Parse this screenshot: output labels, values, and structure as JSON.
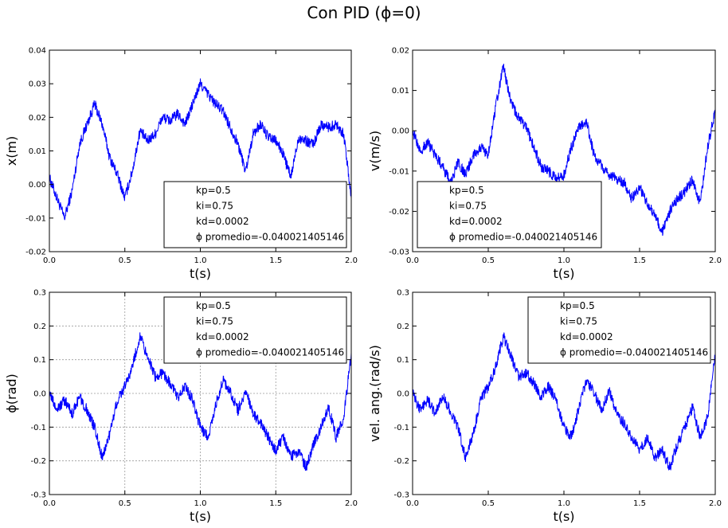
{
  "figure": {
    "suptitle": "Con PID (ϕ=0)"
  },
  "chart_data": [
    {
      "type": "line",
      "ylabel": "x(m)",
      "xlabel": "t(s)",
      "xlim": [
        0,
        2.0
      ],
      "ylim": [
        -0.02,
        0.04
      ],
      "xticks": [
        "0.0",
        "0.5",
        "1.0",
        "1.5",
        "2.0"
      ],
      "yticks": [
        "-0.02",
        "-0.01",
        "0.00",
        "0.01",
        "0.02",
        "0.03",
        "0.04"
      ],
      "grid": false,
      "legend_position": "lower-right",
      "legend": [
        "kp=0.5",
        "ki=0.75",
        "kd=0.0002",
        "ϕ promedio=-0.040021405146"
      ],
      "series": [
        {
          "color": "#0000ff",
          "x": [
            0.0,
            0.05,
            0.1,
            0.15,
            0.2,
            0.25,
            0.3,
            0.35,
            0.4,
            0.45,
            0.5,
            0.55,
            0.6,
            0.65,
            0.7,
            0.75,
            0.8,
            0.85,
            0.9,
            0.95,
            1.0,
            1.05,
            1.1,
            1.15,
            1.2,
            1.25,
            1.3,
            1.35,
            1.4,
            1.45,
            1.5,
            1.55,
            1.6,
            1.65,
            1.7,
            1.75,
            1.8,
            1.85,
            1.9,
            1.95,
            2.0
          ],
          "y": [
            0.002,
            -0.004,
            -0.01,
            -0.002,
            0.012,
            0.018,
            0.024,
            0.018,
            0.008,
            0.003,
            -0.004,
            0.004,
            0.016,
            0.013,
            0.015,
            0.02,
            0.019,
            0.021,
            0.018,
            0.024,
            0.03,
            0.027,
            0.024,
            0.022,
            0.017,
            0.012,
            0.004,
            0.015,
            0.018,
            0.014,
            0.013,
            0.009,
            0.002,
            0.014,
            0.013,
            0.012,
            0.018,
            0.017,
            0.018,
            0.015,
            -0.004
          ]
        }
      ]
    },
    {
      "type": "line",
      "ylabel": "v(m/s)",
      "xlabel": "t(s)",
      "xlim": [
        0,
        2.0
      ],
      "ylim": [
        -0.03,
        0.02
      ],
      "xticks": [
        "0.0",
        "0.5",
        "1.0",
        "1.5",
        "2.0"
      ],
      "yticks": [
        "-0.03",
        "-0.02",
        "-0.01",
        "0.00",
        "0.01",
        "0.02"
      ],
      "grid": false,
      "legend_position": "lower-left",
      "legend": [
        "kp=0.5",
        "ki=0.75",
        "kd=0.0002",
        "ϕ promedio=-0.040021405146"
      ],
      "series": [
        {
          "color": "#0000ff",
          "x": [
            0.0,
            0.05,
            0.1,
            0.15,
            0.2,
            0.25,
            0.3,
            0.35,
            0.4,
            0.45,
            0.5,
            0.55,
            0.6,
            0.65,
            0.7,
            0.75,
            0.8,
            0.85,
            0.9,
            0.95,
            1.0,
            1.05,
            1.1,
            1.15,
            1.2,
            1.25,
            1.3,
            1.35,
            1.4,
            1.45,
            1.5,
            1.55,
            1.6,
            1.65,
            1.7,
            1.75,
            1.8,
            1.85,
            1.9,
            1.95,
            2.0
          ],
          "y": [
            0.0,
            -0.005,
            -0.003,
            -0.006,
            -0.009,
            -0.013,
            -0.008,
            -0.011,
            -0.006,
            -0.004,
            -0.006,
            0.006,
            0.016,
            0.007,
            0.003,
            0.001,
            -0.004,
            -0.009,
            -0.01,
            -0.012,
            -0.011,
            -0.004,
            0.001,
            0.002,
            -0.006,
            -0.009,
            -0.011,
            -0.012,
            -0.013,
            -0.017,
            -0.014,
            -0.018,
            -0.021,
            -0.025,
            -0.02,
            -0.017,
            -0.015,
            -0.012,
            -0.018,
            -0.004,
            0.005
          ]
        }
      ]
    },
    {
      "type": "line",
      "ylabel": "ϕ(rad)",
      "xlabel": "t(s)",
      "xlim": [
        0,
        2.0
      ],
      "ylim": [
        -0.3,
        0.3
      ],
      "xticks": [
        "0.0",
        "0.5",
        "1.0",
        "1.5",
        "2.0"
      ],
      "yticks": [
        "-0.3",
        "-0.2",
        "-0.1",
        "0.0",
        "0.1",
        "0.2",
        "0.3"
      ],
      "grid": true,
      "legend_position": "upper-right",
      "legend": [
        "kp=0.5",
        "ki=0.75",
        "kd=0.0002",
        "ϕ promedio=-0.040021405146"
      ],
      "series": [
        {
          "color": "#0000ff",
          "x": [
            0.0,
            0.05,
            0.1,
            0.15,
            0.2,
            0.25,
            0.3,
            0.35,
            0.4,
            0.45,
            0.5,
            0.55,
            0.6,
            0.65,
            0.7,
            0.75,
            0.8,
            0.85,
            0.9,
            0.95,
            1.0,
            1.05,
            1.1,
            1.15,
            1.2,
            1.25,
            1.3,
            1.35,
            1.4,
            1.45,
            1.5,
            1.55,
            1.6,
            1.65,
            1.7,
            1.75,
            1.8,
            1.85,
            1.9,
            1.95,
            2.0
          ],
          "y": [
            0.0,
            -0.05,
            -0.02,
            -0.06,
            -0.01,
            -0.05,
            -0.1,
            -0.19,
            -0.12,
            -0.02,
            0.02,
            0.08,
            0.17,
            0.11,
            0.05,
            0.06,
            0.03,
            -0.01,
            0.02,
            -0.02,
            -0.1,
            -0.13,
            -0.04,
            0.04,
            0.0,
            -0.05,
            0.01,
            -0.06,
            -0.09,
            -0.13,
            -0.17,
            -0.13,
            -0.19,
            -0.17,
            -0.22,
            -0.15,
            -0.1,
            -0.04,
            -0.13,
            -0.07,
            0.12
          ]
        }
      ]
    },
    {
      "type": "line",
      "ylabel": "vel. ang.(rad/s)",
      "xlabel": "t(s)",
      "xlim": [
        0,
        2.0
      ],
      "ylim": [
        -0.3,
        0.3
      ],
      "xticks": [
        "0.0",
        "0.5",
        "1.0",
        "1.5",
        "2.0"
      ],
      "yticks": [
        "-0.3",
        "-0.2",
        "-0.1",
        "0.0",
        "0.1",
        "0.2",
        "0.3"
      ],
      "grid": false,
      "legend_position": "upper-right",
      "legend": [
        "kp=0.5",
        "ki=0.75",
        "kd=0.0002",
        "ϕ promedio=-0.040021405146"
      ],
      "series": [
        {
          "color": "#0000ff",
          "x": [
            0.0,
            0.05,
            0.1,
            0.15,
            0.2,
            0.25,
            0.3,
            0.35,
            0.4,
            0.45,
            0.5,
            0.55,
            0.6,
            0.65,
            0.7,
            0.75,
            0.8,
            0.85,
            0.9,
            0.95,
            1.0,
            1.05,
            1.1,
            1.15,
            1.2,
            1.25,
            1.3,
            1.35,
            1.4,
            1.45,
            1.5,
            1.55,
            1.6,
            1.65,
            1.7,
            1.75,
            1.8,
            1.85,
            1.9,
            1.95,
            2.0
          ],
          "y": [
            0.0,
            -0.05,
            -0.02,
            -0.06,
            -0.01,
            -0.05,
            -0.1,
            -0.19,
            -0.12,
            -0.02,
            0.02,
            0.08,
            0.17,
            0.11,
            0.05,
            0.06,
            0.03,
            -0.01,
            0.02,
            -0.02,
            -0.1,
            -0.13,
            -0.04,
            0.04,
            0.0,
            -0.05,
            0.01,
            -0.06,
            -0.09,
            -0.13,
            -0.17,
            -0.13,
            -0.19,
            -0.17,
            -0.22,
            -0.15,
            -0.1,
            -0.04,
            -0.13,
            -0.07,
            0.12
          ]
        }
      ]
    }
  ]
}
